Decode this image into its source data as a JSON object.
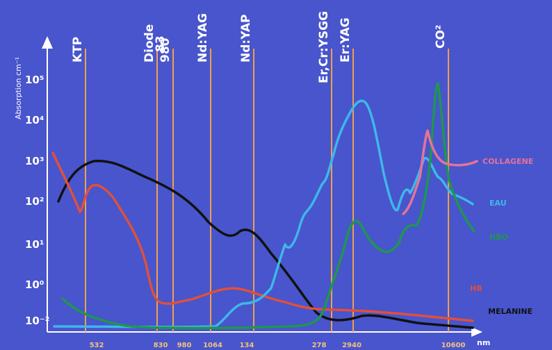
{
  "chart_data": {
    "type": "line",
    "ylabel": "Absorption cm⁻¹",
    "xunit": "nm",
    "yscale": "log",
    "y_ticks": [
      {
        "label": "10⁻²",
        "value": -2
      },
      {
        "label": "10⁰",
        "value": 0
      },
      {
        "label": "10¹",
        "value": 1
      },
      {
        "label": "10²",
        "value": 2
      },
      {
        "label": "10³",
        "value": 3
      },
      {
        "label": "10⁴",
        "value": 4
      },
      {
        "label": "10⁵",
        "value": 5
      }
    ],
    "x_ticks": [
      "532",
      "830",
      "980",
      "1064",
      "134",
      "278",
      "2940",
      "10600"
    ],
    "laser_lines": [
      {
        "name": "KTP",
        "wavelength": "532"
      },
      {
        "name": "Diode",
        "wavelength": "830"
      },
      {
        "name": "83",
        "wavelength": ""
      },
      {
        "name": "980",
        "wavelength": "980"
      },
      {
        "name": "Nd:YAG",
        "wavelength": "1064"
      },
      {
        "name": "Nd:YAP",
        "wavelength": "134"
      },
      {
        "name": "Er,Cr:YSGG",
        "wavelength": "278"
      },
      {
        "name": "Er:YAG",
        "wavelength": "2940"
      },
      {
        "name": "CO²",
        "wavelength": "10600"
      }
    ],
    "series": [
      {
        "name": "MELANINE",
        "color": "#111111"
      },
      {
        "name": "HB",
        "color": "#e0503a"
      },
      {
        "name": "EAU",
        "color": "#3fb7e8"
      },
      {
        "name": "HBO",
        "color": "#1f9650"
      },
      {
        "name": "COLLAGENE",
        "color": "#e5739a"
      }
    ],
    "colors": {
      "background": "#4855cc",
      "laser_line": "#f0a04a",
      "axis": "#ffffff"
    }
  }
}
